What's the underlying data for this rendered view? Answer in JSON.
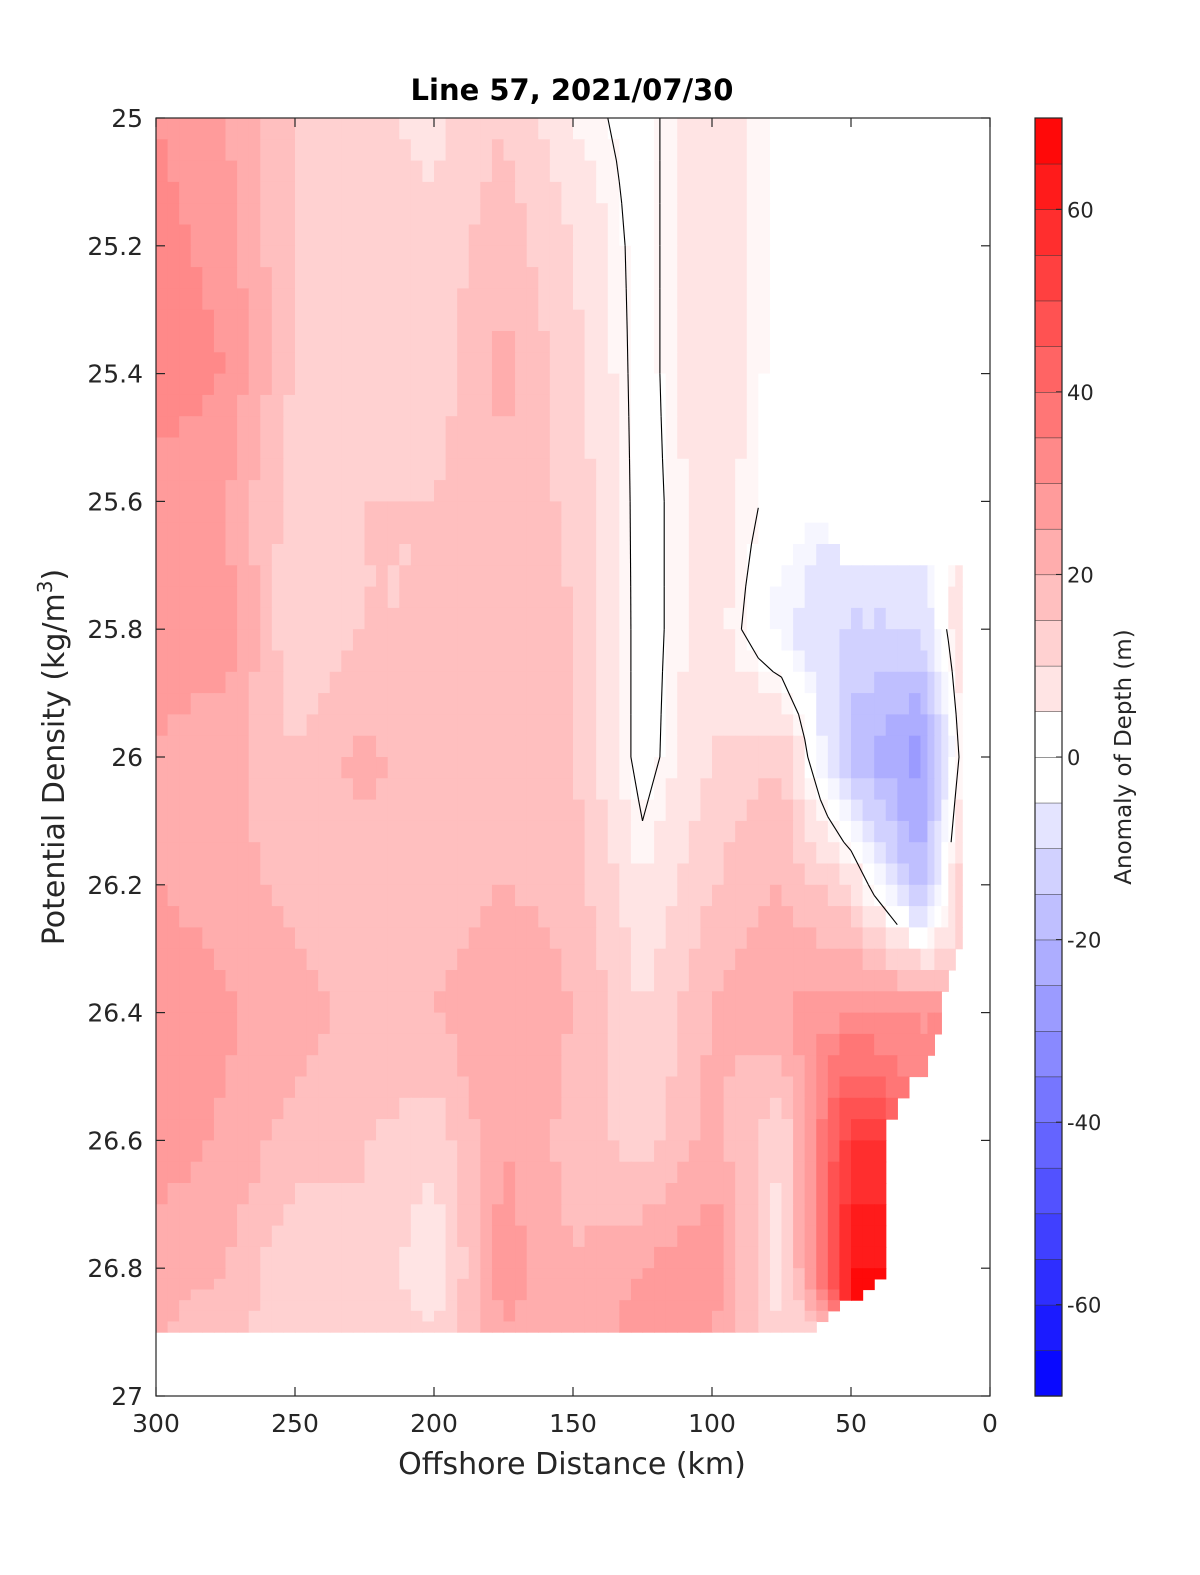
{
  "chart_data": {
    "type": "heatmap",
    "title": "Line 57, 2021/07/30",
    "xlabel": "Offshore Distance (km)",
    "ylabel_main": "Potential Density (kg/m",
    "ylabel_sup": "3",
    "ylabel_close": ")",
    "xlim": [
      300,
      0
    ],
    "ylim": [
      25,
      27
    ],
    "x_reversed": true,
    "y_reversed": true,
    "xticks": [
      "300",
      "250",
      "200",
      "150",
      "100",
      "50",
      "0"
    ],
    "yticks": [
      "25",
      "25.2",
      "25.4",
      "25.6",
      "25.8",
      "26",
      "26.2",
      "26.4",
      "26.6",
      "26.8",
      "27"
    ],
    "colorbar": {
      "label": "Anomaly of Depth (m)",
      "range": [
        -70,
        70
      ],
      "step": 5,
      "ticks": [
        "60",
        "40",
        "20",
        "0",
        "-20",
        "-40",
        "-60"
      ],
      "colormap": "blue-white-red",
      "min_color": "#0000ff",
      "mid_color": "#ffffff",
      "max_color": "#ff0000"
    },
    "grid": false,
    "x": [
      300,
      275,
      250,
      225,
      200,
      175,
      150,
      125,
      100,
      75,
      50,
      25,
      10
    ],
    "y": [
      25.0,
      25.2,
      25.4,
      25.6,
      25.8,
      26.0,
      26.2,
      26.4,
      26.6,
      26.8,
      26.9
    ],
    "z": [
      [
        30,
        25,
        15,
        12,
        8,
        15,
        5,
        0,
        10,
        0,
        null,
        null,
        null
      ],
      [
        32,
        28,
        14,
        10,
        12,
        18,
        10,
        0,
        10,
        0,
        null,
        null,
        null
      ],
      [
        33,
        30,
        14,
        12,
        12,
        22,
        12,
        0,
        10,
        0,
        null,
        null,
        null
      ],
      [
        28,
        25,
        12,
        15,
        15,
        18,
        14,
        0,
        8,
        0,
        null,
        null,
        null
      ],
      [
        26,
        28,
        10,
        15,
        15,
        18,
        15,
        0,
        8,
        -5,
        -10,
        -10,
        10
      ],
      [
        25,
        22,
        15,
        22,
        15,
        18,
        15,
        0,
        10,
        15,
        -18,
        -28,
        5
      ],
      [
        25,
        22,
        18,
        18,
        15,
        20,
        18,
        5,
        15,
        20,
        10,
        -20,
        15
      ],
      [
        30,
        26,
        22,
        18,
        20,
        25,
        20,
        10,
        20,
        25,
        30,
        30,
        null
      ],
      [
        28,
        24,
        18,
        15,
        12,
        25,
        18,
        12,
        22,
        10,
        55,
        null,
        null
      ],
      [
        22,
        20,
        10,
        15,
        5,
        28,
        20,
        25,
        30,
        5,
        65,
        null,
        null
      ],
      [
        20,
        18,
        10,
        15,
        10,
        25,
        20,
        28,
        25,
        10,
        null,
        null,
        null
      ]
    ]
  }
}
